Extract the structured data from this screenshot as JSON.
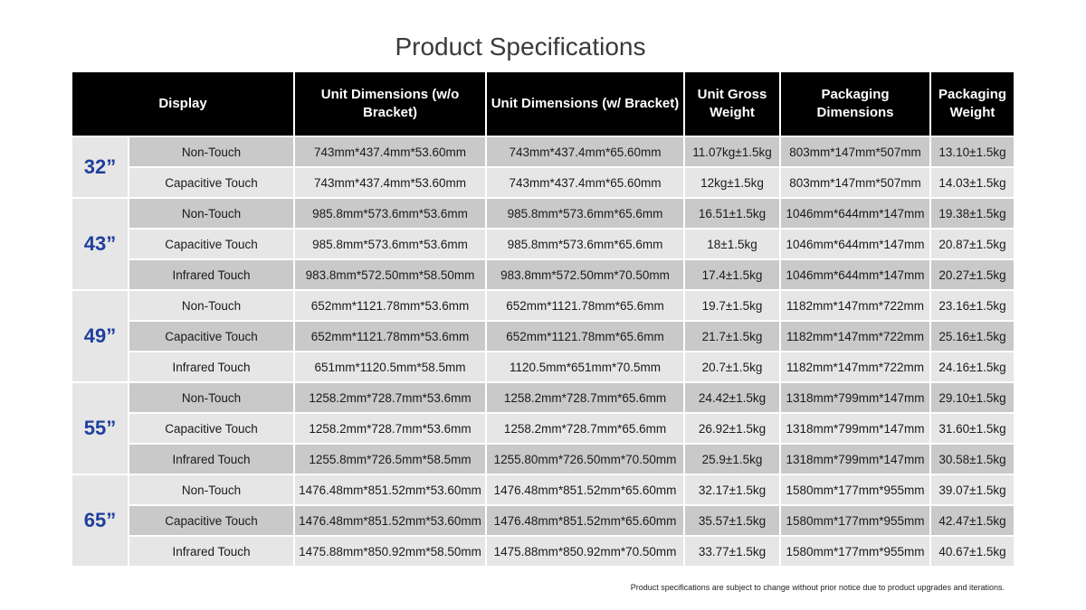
{
  "title": "Product Specifications",
  "headers": {
    "display": "Display",
    "unit_no_bracket": "Unit Dimensions (w/o Bracket)",
    "unit_bracket": "Unit Dimensions (w/ Bracket)",
    "gross_weight": "Unit Gross Weight",
    "pkg_dims": "Packaging Dimensions",
    "pkg_weight": "Packaging Weight"
  },
  "groups": [
    {
      "size": "32”",
      "rows": [
        [
          "Non-Touch",
          "743mm*437.4mm*53.60mm",
          "743mm*437.4mm*65.60mm",
          "11.07kg±1.5kg",
          "803mm*147mm*507mm",
          "13.10±1.5kg"
        ],
        [
          "Capacitive  Touch",
          "743mm*437.4mm*53.60mm",
          "743mm*437.4mm*65.60mm",
          "12kg±1.5kg",
          "803mm*147mm*507mm",
          "14.03±1.5kg"
        ]
      ]
    },
    {
      "size": "43”",
      "rows": [
        [
          "Non-Touch",
          "985.8mm*573.6mm*53.6mm",
          "985.8mm*573.6mm*65.6mm",
          "16.51±1.5kg",
          "1046mm*644mm*147mm",
          "19.38±1.5kg"
        ],
        [
          "Capacitive  Touch",
          "985.8mm*573.6mm*53.6mm",
          "985.8mm*573.6mm*65.6mm",
          "18±1.5kg",
          "1046mm*644mm*147mm",
          "20.87±1.5kg"
        ],
        [
          "Infrared Touch",
          "983.8mm*572.50mm*58.50mm",
          "983.8mm*572.50mm*70.50mm",
          "17.4±1.5kg",
          "1046mm*644mm*147mm",
          "20.27±1.5kg"
        ]
      ]
    },
    {
      "size": "49”",
      "rows": [
        [
          "Non-Touch",
          "652mm*1121.78mm*53.6mm",
          "652mm*1121.78mm*65.6mm",
          "19.7±1.5kg",
          "1182mm*147mm*722mm",
          "23.16±1.5kg"
        ],
        [
          "Capacitive  Touch",
          "652mm*1121.78mm*53.6mm",
          "652mm*1121.78mm*65.6mm",
          "21.7±1.5kg",
          "1182mm*147mm*722mm",
          "25.16±1.5kg"
        ],
        [
          "Infrared Touch",
          "651mm*1120.5mm*58.5mm",
          "1120.5mm*651mm*70.5mm",
          "20.7±1.5kg",
          "1182mm*147mm*722mm",
          "24.16±1.5kg"
        ]
      ]
    },
    {
      "size": "55”",
      "rows": [
        [
          "Non-Touch",
          "1258.2mm*728.7mm*53.6mm",
          "1258.2mm*728.7mm*65.6mm",
          "24.42±1.5kg",
          "1318mm*799mm*147mm",
          "29.10±1.5kg"
        ],
        [
          "Capacitive  Touch",
          "1258.2mm*728.7mm*53.6mm",
          "1258.2mm*728.7mm*65.6mm",
          "26.92±1.5kg",
          "1318mm*799mm*147mm",
          "31.60±1.5kg"
        ],
        [
          "Infrared Touch",
          "1255.8mm*726.5mm*58.5mm",
          "1255.80mm*726.50mm*70.50mm",
          "25.9±1.5kg",
          "1318mm*799mm*147mm",
          "30.58±1.5kg"
        ]
      ]
    },
    {
      "size": "65”",
      "rows": [
        [
          "Non-Touch",
          "1476.48mm*851.52mm*53.60mm",
          "1476.48mm*851.52mm*65.60mm",
          "32.17±1.5kg",
          "1580mm*177mm*955mm",
          "39.07±1.5kg"
        ],
        [
          "Capacitive  Touch",
          "1476.48mm*851.52mm*53.60mm",
          "1476.48mm*851.52mm*65.60mm",
          "35.57±1.5kg",
          "1580mm*177mm*955mm",
          "42.47±1.5kg"
        ],
        [
          "Infrared Touch",
          "1475.88mm*850.92mm*58.50mm",
          "1475.88mm*850.92mm*70.50mm",
          "33.77±1.5kg",
          "1580mm*177mm*955mm",
          "40.67±1.5kg"
        ]
      ]
    }
  ],
  "footnote": "Product specifications are subject to change without prior notice due to product upgrades and iterations.",
  "colors": {
    "header_bg": "#000000",
    "size_text": "#1f3f9e",
    "row_dark": "#c9c9c9",
    "row_light": "#e6e6e6"
  }
}
